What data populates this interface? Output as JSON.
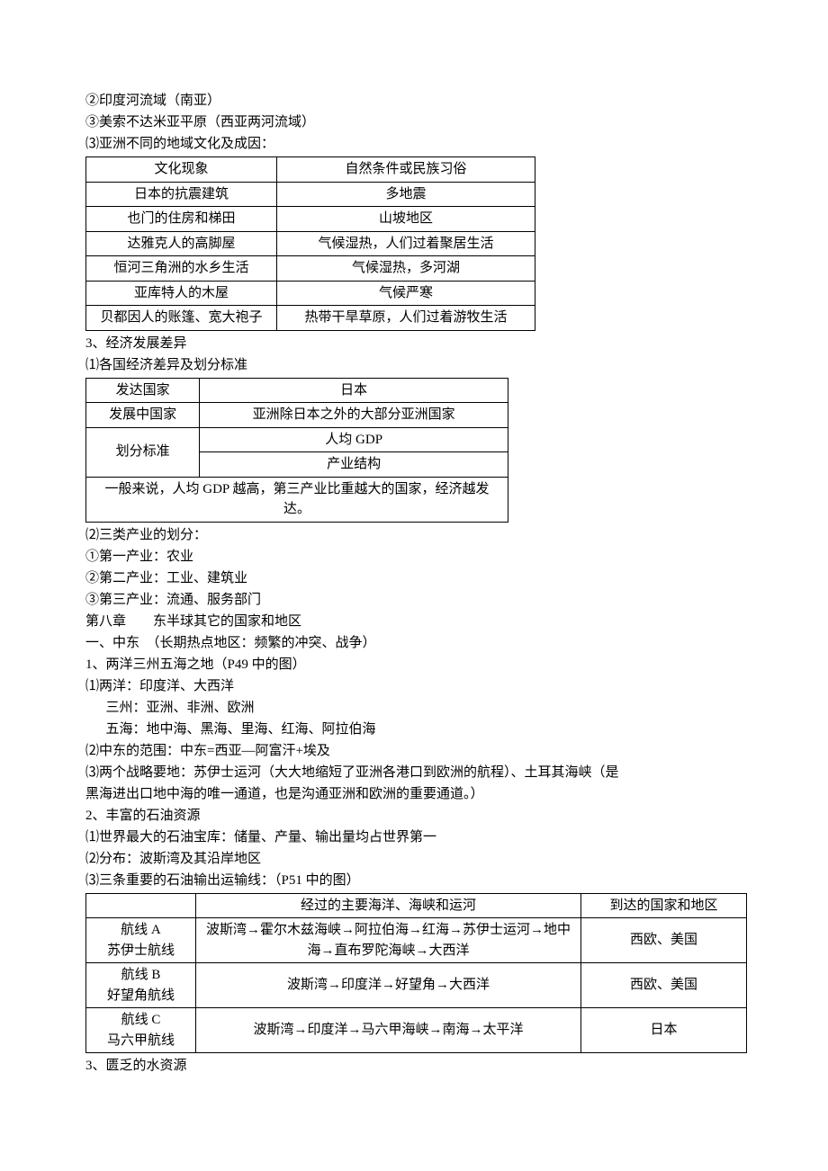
{
  "intro": {
    "l1": "②印度河流域（南亚）",
    "l2": "③美索不达米亚平原（西亚两河流域）",
    "l3": "⑶亚洲不同的地域文化及成因："
  },
  "table1": {
    "r0c0": "文化现象",
    "r0c1": "自然条件或民族习俗",
    "r1c0": "日本的抗震建筑",
    "r1c1": "多地震",
    "r2c0": "也门的住房和梯田",
    "r2c1": "山坡地区",
    "r3c0": "达雅克人的高脚屋",
    "r3c1": "气候湿热，人们过着聚居生活",
    "r4c0": "恒河三角洲的水乡生活",
    "r4c1": "气候湿热，多河湖",
    "r5c0": "亚库特人的木屋",
    "r5c1": "气候严寒",
    "r6c0": "贝都因人的账篷、宽大袍子",
    "r6c1": "热带干旱草原，人们过着游牧生活"
  },
  "sec3": {
    "title": "3、经济发展差异",
    "sub1": "⑴各国经济差异及划分标准"
  },
  "table2": {
    "r0c0": "发达国家",
    "r0c1": "日本",
    "r1c0": "发展中国家",
    "r1c1": "亚洲除日本之外的大部分亚洲国家",
    "r2c0": "划分标准",
    "r2c1a": "人均 GDP",
    "r2c1b": "产业结构",
    "r3": "一般来说，人均 GDP 越高，第三产业比重越大的国家，经济越发达。"
  },
  "sec3b": {
    "l1": "⑵三类产业的划分：",
    "l2": "①第一产业：农业",
    "l3": "②第二产业：工业、建筑业",
    "l4": "③第三产业：流通、服务部门"
  },
  "ch8": {
    "title": "第八章　　东半球其它的国家和地区",
    "sec1": "一、中东　（长期热点地区：频繁的冲突、战争）",
    "p1": "1、两洋三州五海之地（P49 中的图）",
    "p1a": "⑴两洋：印度洋、大西洋",
    "p1b": "三州：亚洲、非洲、欧洲",
    "p1c": "五海：地中海、黑海、里海、红海、阿拉伯海",
    "p2": "⑵中东的范围：中东=西亚—阿富汗+埃及",
    "p3a": "⑶两个战略要地：苏伊士运河（大大地缩短了亚洲各港口到欧洲的航程）、土耳其海峡（是",
    "p3b": "黑海进出口地中海的唯一通道，也是沟通亚洲和欧洲的重要通道。）",
    "p4": "2、丰富的石油资源",
    "p4a": "⑴世界最大的石油宝库：储量、产量、输出量均占世界第一",
    "p4b": "⑵分布：波斯湾及其沿岸地区",
    "p4c": "⑶三条重要的石油输出运输线：（P51 中的图）"
  },
  "table3": {
    "h1": "",
    "h2": "经过的主要海洋、海峡和运河",
    "h3": "到达的国家和地区",
    "rA1a": "航线 A",
    "rA1b": "苏伊士航线",
    "rA2": "波斯湾→霍尔木兹海峡→阿拉伯海→红海→苏伊士运河→地中海→直布罗陀海峡→大西洋",
    "rA3": "西欧、美国",
    "rB1a": "航线 B",
    "rB1b": "好望角航线",
    "rB2": "波斯湾→印度洋→好望角→大西洋",
    "rB3": "西欧、美国",
    "rC1a": "航线 C",
    "rC1b": "马六甲航线",
    "rC2": "波斯湾→印度洋→马六甲海峡→南海→太平洋",
    "rC3": "日本"
  },
  "footer": {
    "l1": "3、匮乏的水资源"
  }
}
